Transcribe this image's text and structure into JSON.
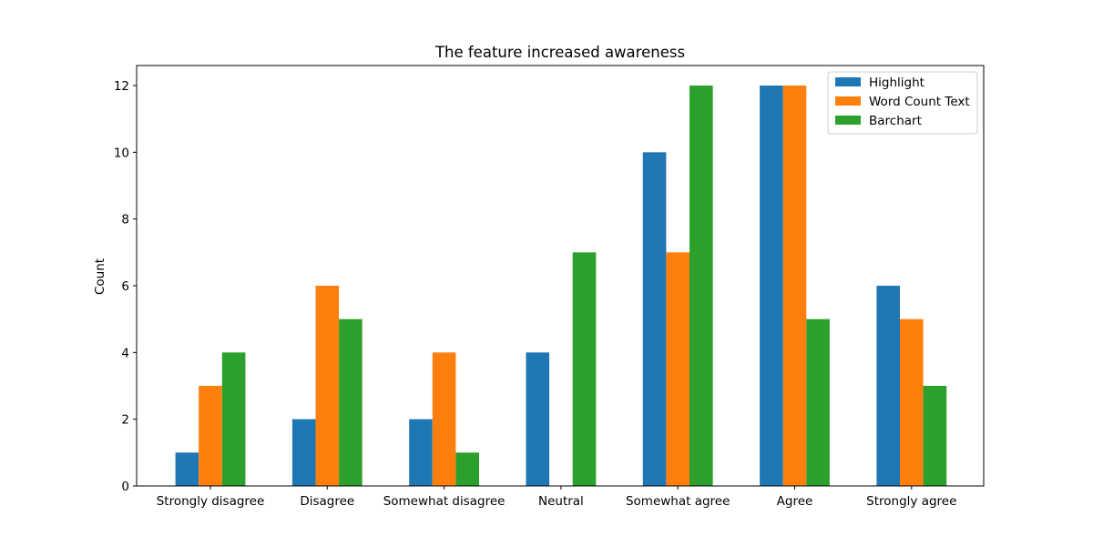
{
  "chart_data": {
    "type": "bar",
    "title": "The feature increased awareness",
    "xlabel": "",
    "ylabel": "Count",
    "ylim": [
      0,
      12.6
    ],
    "yticks": [
      0,
      2,
      4,
      6,
      8,
      10,
      12
    ],
    "grid": false,
    "legend_position": "top-right",
    "categories": [
      "Strongly disagree",
      "Disagree",
      "Somewhat disagree",
      "Neutral",
      "Somewhat agree",
      "Agree",
      "Strongly agree"
    ],
    "series": [
      {
        "name": "Highlight",
        "color": "#1f77b4",
        "values": [
          1,
          2,
          2,
          4,
          10,
          12,
          6
        ]
      },
      {
        "name": "Word Count Text",
        "color": "#ff7f0e",
        "values": [
          3,
          6,
          4,
          0,
          7,
          12,
          5
        ]
      },
      {
        "name": "Barchart",
        "color": "#2ca02c",
        "values": [
          4,
          5,
          1,
          7,
          12,
          5,
          3
        ]
      }
    ]
  }
}
